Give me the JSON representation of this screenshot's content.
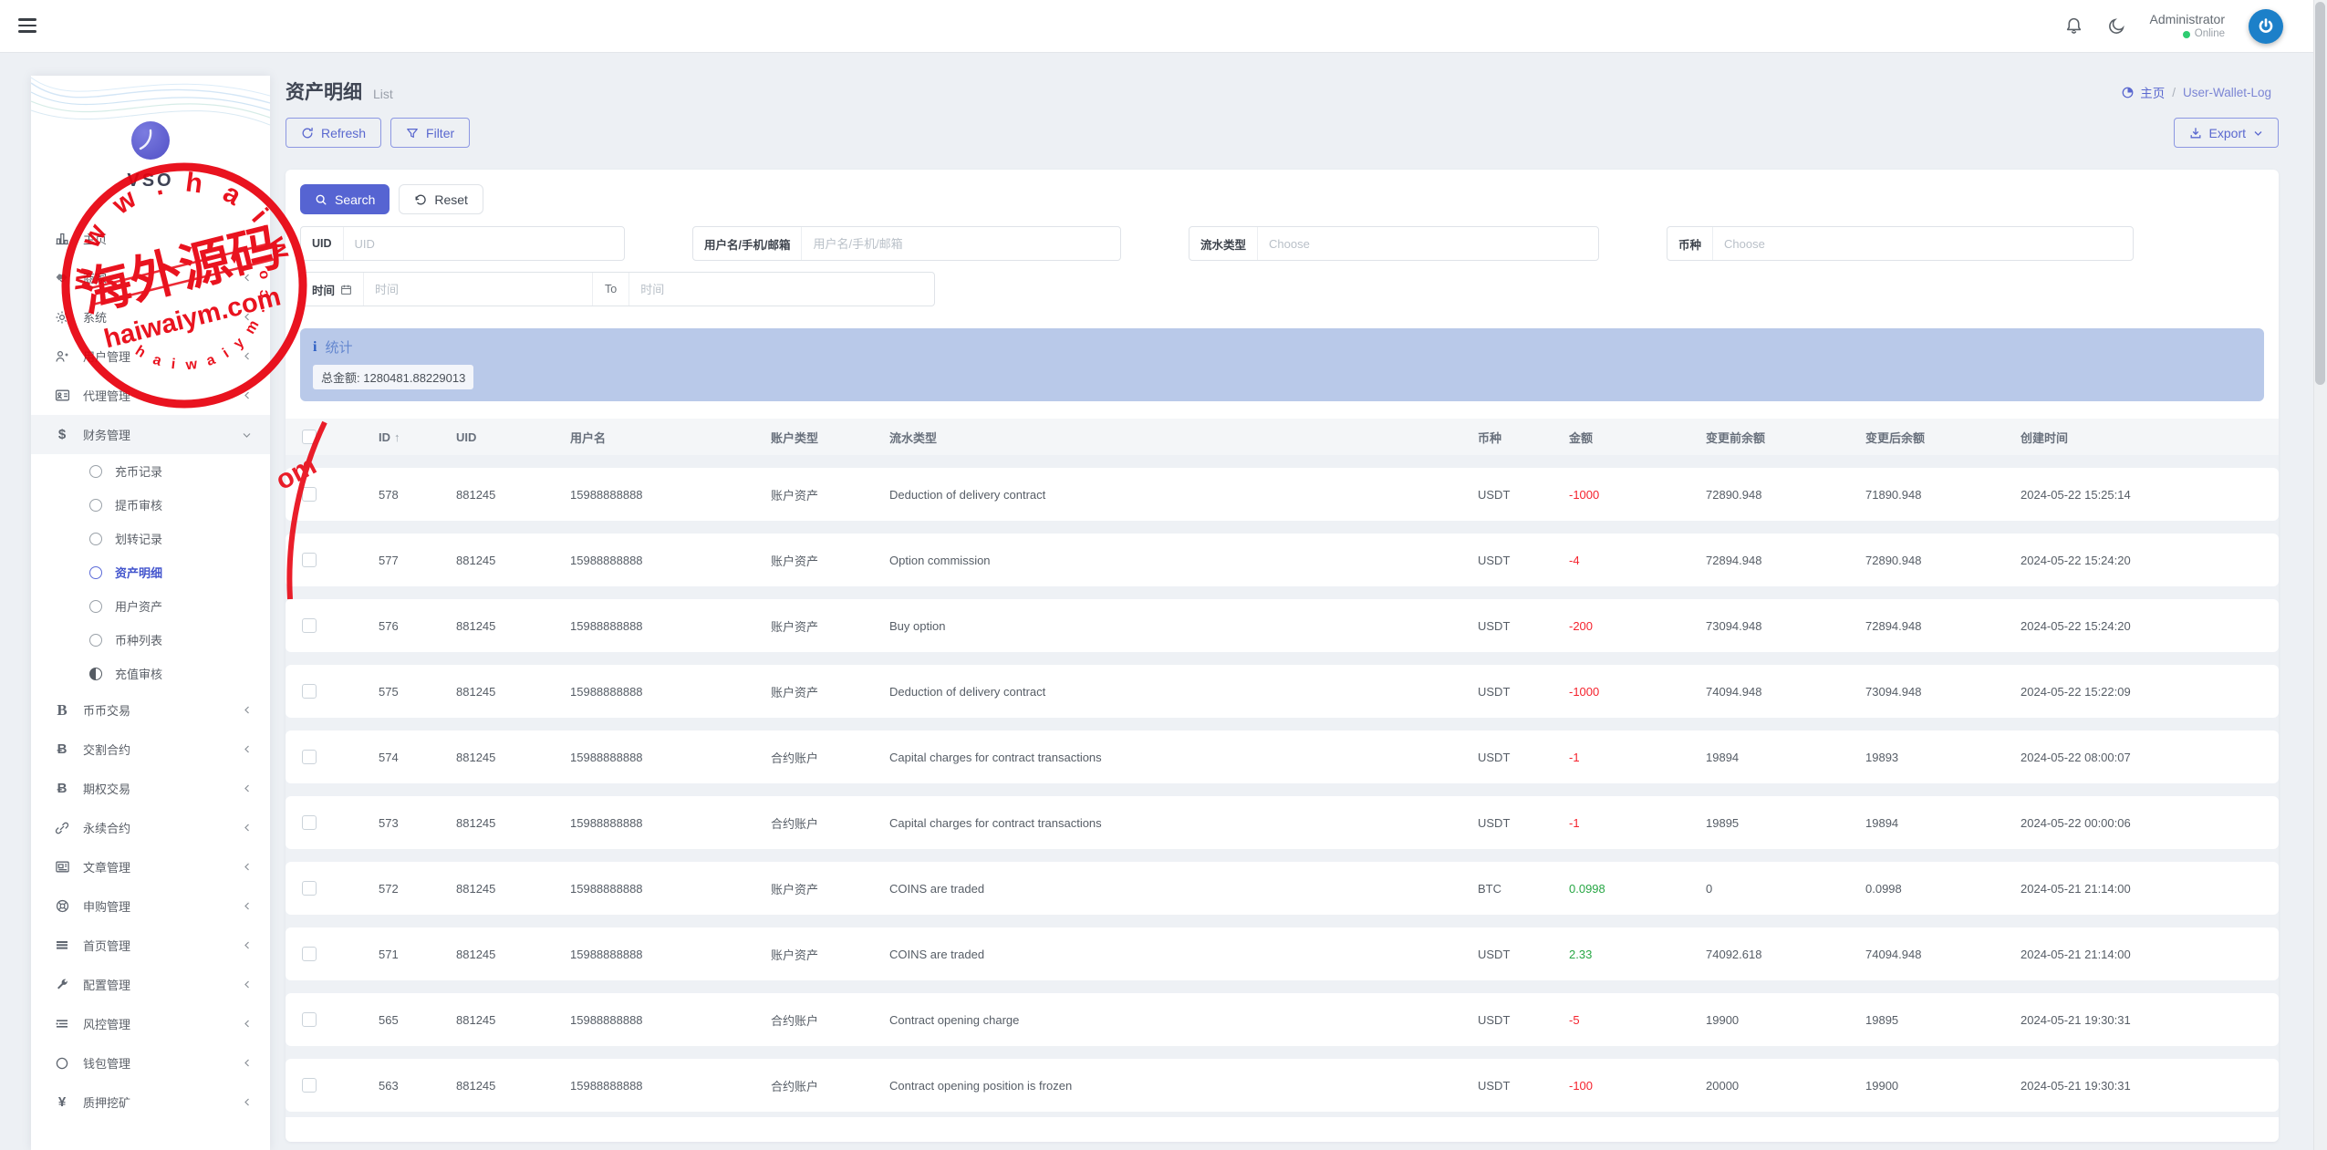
{
  "topbar": {
    "user_name": "Administrator",
    "user_status": "Online"
  },
  "sidebar": {
    "logo_text": "VSO",
    "items": [
      {
        "label": "主页"
      },
      {
        "label": "商家"
      },
      {
        "label": "系统"
      },
      {
        "label": "用户管理"
      },
      {
        "label": "代理管理"
      },
      {
        "label": "财务管理"
      },
      {
        "label": "币币交易"
      },
      {
        "label": "交割合约"
      },
      {
        "label": "期权交易"
      },
      {
        "label": "永续合约"
      },
      {
        "label": "文章管理"
      },
      {
        "label": "申购管理"
      },
      {
        "label": "首页管理"
      },
      {
        "label": "配置管理"
      },
      {
        "label": "风控管理"
      },
      {
        "label": "钱包管理"
      },
      {
        "label": "质押挖矿"
      }
    ],
    "finance_children": [
      {
        "label": "充币记录"
      },
      {
        "label": "提币审核"
      },
      {
        "label": "划转记录"
      },
      {
        "label": "资产明细"
      },
      {
        "label": "用户资产"
      },
      {
        "label": "币种列表"
      },
      {
        "label": "充值审核"
      }
    ]
  },
  "page_header": {
    "title": "资产明细",
    "subtitle": "List",
    "breadcrumb": {
      "home": "主页",
      "separator": "/",
      "current": "User-Wallet-Log"
    }
  },
  "toolbar": {
    "refresh_label": "Refresh",
    "filter_label": "Filter",
    "export_label": "Export"
  },
  "filters": {
    "search_label": "Search",
    "reset_label": "Reset",
    "uid_label": "UID",
    "uid_placeholder": "UID",
    "user_label": "用户名/手机/邮箱",
    "user_placeholder": "用户名/手机/邮箱",
    "flow_type_label": "流水类型",
    "flow_type_placeholder": "Choose",
    "coin_label": "币种",
    "coin_placeholder": "Choose",
    "time_label": "时间",
    "time_from_placeholder": "时间",
    "to_label": "To",
    "time_to_placeholder": "时间"
  },
  "stats": {
    "title": "统计",
    "total_label": "总金额:",
    "total_value": "1280481.88229013"
  },
  "table": {
    "sort_icon": "↑",
    "columns": [
      "ID",
      "UID",
      "用户名",
      "账户类型",
      "流水类型",
      "币种",
      "金额",
      "变更前余额",
      "变更后余额",
      "创建时间"
    ],
    "rows": [
      {
        "id": "578",
        "uid": "881245",
        "username": "15988888888",
        "account_type": "账户资产",
        "flow_type": "Deduction of delivery contract",
        "coin": "USDT",
        "amount": "-1000",
        "sign": "neg",
        "before": "72890.948",
        "after": "71890.948",
        "created": "2024-05-22 15:25:14"
      },
      {
        "id": "577",
        "uid": "881245",
        "username": "15988888888",
        "account_type": "账户资产",
        "flow_type": "Option commission",
        "coin": "USDT",
        "amount": "-4",
        "sign": "neg",
        "before": "72894.948",
        "after": "72890.948",
        "created": "2024-05-22 15:24:20"
      },
      {
        "id": "576",
        "uid": "881245",
        "username": "15988888888",
        "account_type": "账户资产",
        "flow_type": "Buy option",
        "coin": "USDT",
        "amount": "-200",
        "sign": "neg",
        "before": "73094.948",
        "after": "72894.948",
        "created": "2024-05-22 15:24:20"
      },
      {
        "id": "575",
        "uid": "881245",
        "username": "15988888888",
        "account_type": "账户资产",
        "flow_type": "Deduction of delivery contract",
        "coin": "USDT",
        "amount": "-1000",
        "sign": "neg",
        "before": "74094.948",
        "after": "73094.948",
        "created": "2024-05-22 15:22:09"
      },
      {
        "id": "574",
        "uid": "881245",
        "username": "15988888888",
        "account_type": "合约账户",
        "flow_type": "Capital charges for contract transactions",
        "coin": "USDT",
        "amount": "-1",
        "sign": "neg",
        "before": "19894",
        "after": "19893",
        "created": "2024-05-22 08:00:07"
      },
      {
        "id": "573",
        "uid": "881245",
        "username": "15988888888",
        "account_type": "合约账户",
        "flow_type": "Capital charges for contract transactions",
        "coin": "USDT",
        "amount": "-1",
        "sign": "neg",
        "before": "19895",
        "after": "19894",
        "created": "2024-05-22 00:00:06"
      },
      {
        "id": "572",
        "uid": "881245",
        "username": "15988888888",
        "account_type": "账户资产",
        "flow_type": "COINS are traded",
        "coin": "BTC",
        "amount": "0.0998",
        "sign": "pos",
        "before": "0",
        "after": "0.0998",
        "created": "2024-05-21 21:14:00"
      },
      {
        "id": "571",
        "uid": "881245",
        "username": "15988888888",
        "account_type": "账户资产",
        "flow_type": "COINS are traded",
        "coin": "USDT",
        "amount": "2.33",
        "sign": "pos",
        "before": "74092.618",
        "after": "74094.948",
        "created": "2024-05-21 21:14:00"
      },
      {
        "id": "565",
        "uid": "881245",
        "username": "15988888888",
        "account_type": "合约账户",
        "flow_type": "Contract opening charge",
        "coin": "USDT",
        "amount": "-5",
        "sign": "neg",
        "before": "19900",
        "after": "19895",
        "created": "2024-05-21 19:30:31"
      },
      {
        "id": "563",
        "uid": "881245",
        "username": "15988888888",
        "account_type": "合约账户",
        "flow_type": "Contract opening position is frozen",
        "coin": "USDT",
        "amount": "-100",
        "sign": "neg",
        "before": "20000",
        "after": "19900",
        "created": "2024-05-21 19:30:31"
      }
    ]
  },
  "watermark": {
    "arc_text": "w w w . h a i w a i y m",
    "cn_text": "海外源码",
    "domain_text": "haiwaiym.com",
    "small_arc_text": "h a i w a i y m . c o m",
    "stray_text": "om"
  },
  "colors": {
    "primary": "#5664d2",
    "negative": "#f5222d",
    "positive": "#28a745",
    "stats_bg": "#b9c9e9",
    "stamp_red": "#e8000d"
  }
}
